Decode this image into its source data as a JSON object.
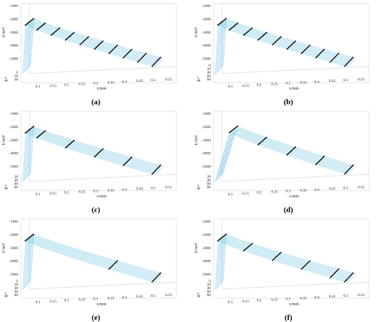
{
  "colors": {
    "surface_high": "#2fd6a6",
    "surface_low": "#5ab4e0",
    "points": "#000000",
    "box": "#c8c8c8"
  },
  "chart_data": [
    {
      "type": "surface3d",
      "panel_label": "(a)",
      "xlabel": "x/mm",
      "ylabel": "U/mV",
      "zlabel": "θ/°",
      "x_ticks": [
        "0.1",
        "0.15",
        "0.2",
        "0.25",
        "0.3",
        "0.35",
        "0.4",
        "0.45",
        "0.5",
        "0.55"
      ],
      "y_ticks": [
        "-1000",
        "-2000",
        "-3000",
        "-4000",
        "-5000"
      ],
      "z_ticks": [
        "0",
        "20",
        "40"
      ],
      "xlim": [
        0.05,
        0.55
      ],
      "ylim": [
        -5500,
        -1000
      ],
      "theta_max": 60,
      "peak": {
        "x": 0.06,
        "U": -1800
      },
      "end": {
        "x": 0.51,
        "U": -5200
      },
      "measured_x": [
        0.06,
        0.1,
        0.15,
        0.2,
        0.25,
        0.3,
        0.35,
        0.4,
        0.45,
        0.5
      ]
    },
    {
      "type": "surface3d",
      "panel_label": "(b)",
      "xlabel": "x/mm",
      "ylabel": "U/mV",
      "zlabel": "θ/°",
      "x_ticks": [
        "0.1",
        "0.15",
        "0.2",
        "0.25",
        "0.3",
        "0.35",
        "0.4",
        "0.45",
        "0.5",
        "0.55"
      ],
      "y_ticks": [
        "-1000",
        "-2000",
        "-3000",
        "-4000",
        "-5000"
      ],
      "z_ticks": [
        "0",
        "20",
        "40",
        "60",
        "80"
      ],
      "xlim": [
        0.05,
        0.55
      ],
      "ylim": [
        -5500,
        -1000
      ],
      "theta_max": 90,
      "peak": {
        "x": 0.06,
        "U": -1800
      },
      "end": {
        "x": 0.51,
        "U": -5200
      },
      "measured_x": [
        0.06,
        0.1,
        0.15,
        0.2,
        0.25,
        0.3,
        0.35,
        0.4,
        0.45,
        0.5
      ]
    },
    {
      "type": "surface3d",
      "panel_label": "(c)",
      "xlabel": "x/mm",
      "ylabel": "U/mV",
      "zlabel": "θ/°",
      "x_ticks": [
        "0.1",
        "0.15",
        "0.2",
        "0.25",
        "0.3",
        "0.35",
        "0.4",
        "0.45",
        "0.5",
        "0.55"
      ],
      "y_ticks": [
        "-1000",
        "-2000",
        "-3000",
        "-4000",
        "-5000"
      ],
      "z_ticks": [
        "20",
        "40",
        "60",
        "80"
      ],
      "xlim": [
        0.05,
        0.55
      ],
      "ylim": [
        -5500,
        -1000
      ],
      "theta_max": 90,
      "peak": {
        "x": 0.06,
        "U": -1800
      },
      "end": {
        "x": 0.51,
        "U": -5200
      },
      "measured_x": [
        0.06,
        0.1,
        0.2,
        0.3,
        0.4,
        0.5
      ]
    },
    {
      "type": "surface3d",
      "panel_label": "(d)",
      "xlabel": "x/mm",
      "ylabel": "U/mV",
      "zlabel": "θ/°",
      "x_ticks": [
        "0.1",
        "0.15",
        "0.2",
        "0.25",
        "0.3",
        "0.35",
        "0.4",
        "0.45",
        "0.5",
        "0.55"
      ],
      "y_ticks": [
        "-1000",
        "-2000",
        "-3000",
        "-4000",
        "-5000"
      ],
      "z_ticks": [
        "20",
        "40",
        "60",
        "80"
      ],
      "xlim": [
        0.05,
        0.55
      ],
      "ylim": [
        -5500,
        -1000
      ],
      "theta_max": 90,
      "peak": {
        "x": 0.1,
        "U": -1800
      },
      "end": {
        "x": 0.51,
        "U": -5200
      },
      "measured_x": [
        0.1,
        0.2,
        0.3,
        0.4,
        0.5
      ]
    },
    {
      "type": "surface3d",
      "panel_label": "(e)",
      "xlabel": "x/mm",
      "ylabel": "U/mV",
      "zlabel": "θ/°",
      "x_ticks": [
        "0.1",
        "0.15",
        "0.2",
        "0.25",
        "0.3",
        "0.35",
        "0.4",
        "0.45",
        "0.5",
        "0.55"
      ],
      "y_ticks": [
        "-1000",
        "-2000",
        "-3000",
        "-4000",
        "-5000"
      ],
      "z_ticks": [
        "0",
        "20",
        "40",
        "60",
        "80"
      ],
      "xlim": [
        0.05,
        0.55
      ],
      "ylim": [
        -5500,
        -1000
      ],
      "theta_max": 90,
      "peak": {
        "x": 0.06,
        "U": -1800
      },
      "end": {
        "x": 0.51,
        "U": -5200
      },
      "measured_x": [
        0.06,
        0.35,
        0.5
      ]
    },
    {
      "type": "surface3d",
      "panel_label": "(f)",
      "xlabel": "x/mm",
      "ylabel": "U/mV",
      "zlabel": "θ/°",
      "x_ticks": [
        "0.1",
        "0.15",
        "0.2",
        "0.25",
        "0.3",
        "0.35",
        "0.4",
        "0.45",
        "0.5",
        "0.55"
      ],
      "y_ticks": [
        "-1000",
        "-2000",
        "-3000",
        "-4000",
        "-5000"
      ],
      "z_ticks": [
        "0",
        "20",
        "40",
        "60",
        "80"
      ],
      "xlim": [
        0.05,
        0.55
      ],
      "ylim": [
        -5500,
        -1000
      ],
      "theta_max": 90,
      "peak": {
        "x": 0.06,
        "U": -1800
      },
      "end": {
        "x": 0.51,
        "U": -5200
      },
      "measured_x": [
        0.06,
        0.15,
        0.25,
        0.35,
        0.45,
        0.5
      ]
    }
  ]
}
